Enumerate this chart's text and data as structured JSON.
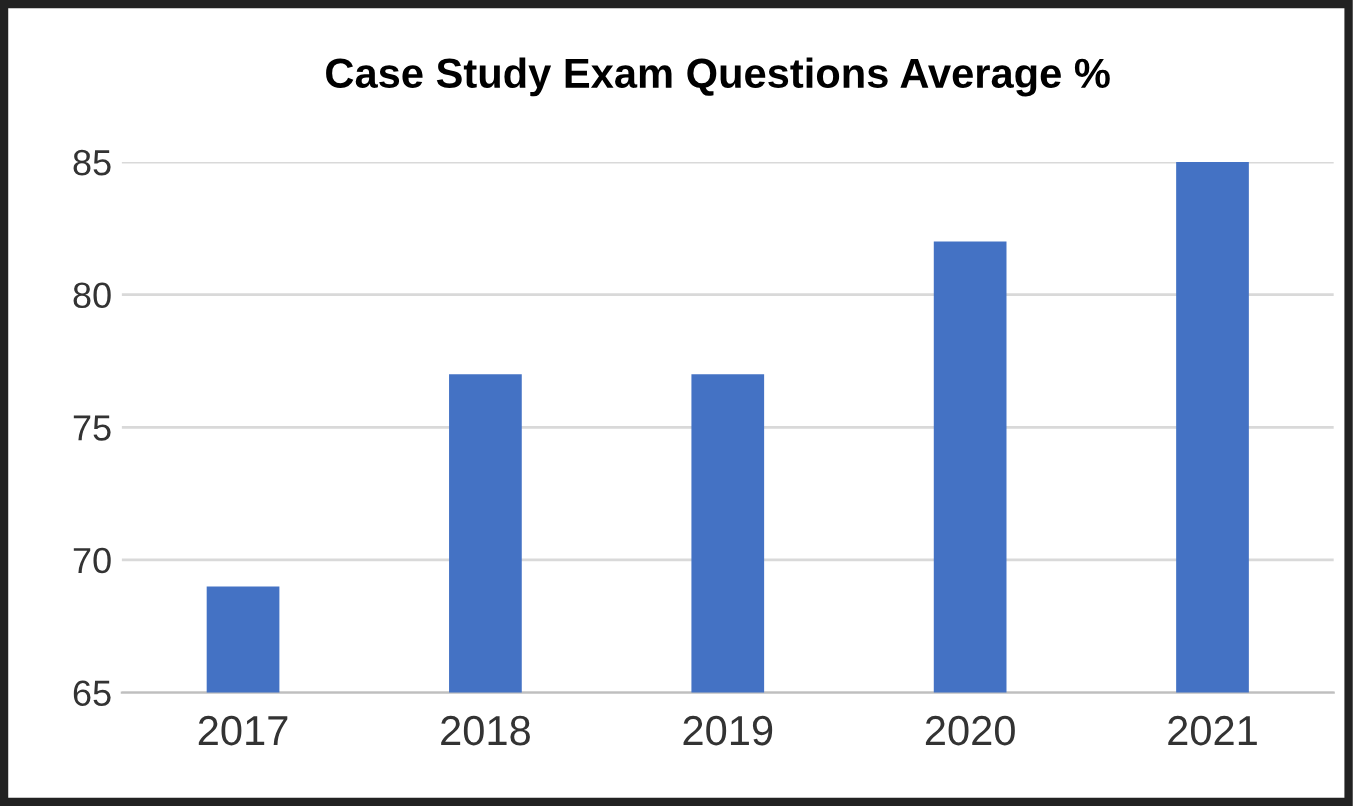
{
  "chart_data": {
    "type": "bar",
    "title": "Case Study Exam Questions Average %",
    "categories": [
      "2017",
      "2018",
      "2019",
      "2020",
      "2021"
    ],
    "values": [
      69,
      77,
      77,
      82,
      85
    ],
    "color": "#4472c4",
    "ylim": [
      65,
      85
    ],
    "yticks": [
      65,
      70,
      75,
      80,
      85
    ],
    "grid": "y",
    "legend": false
  }
}
